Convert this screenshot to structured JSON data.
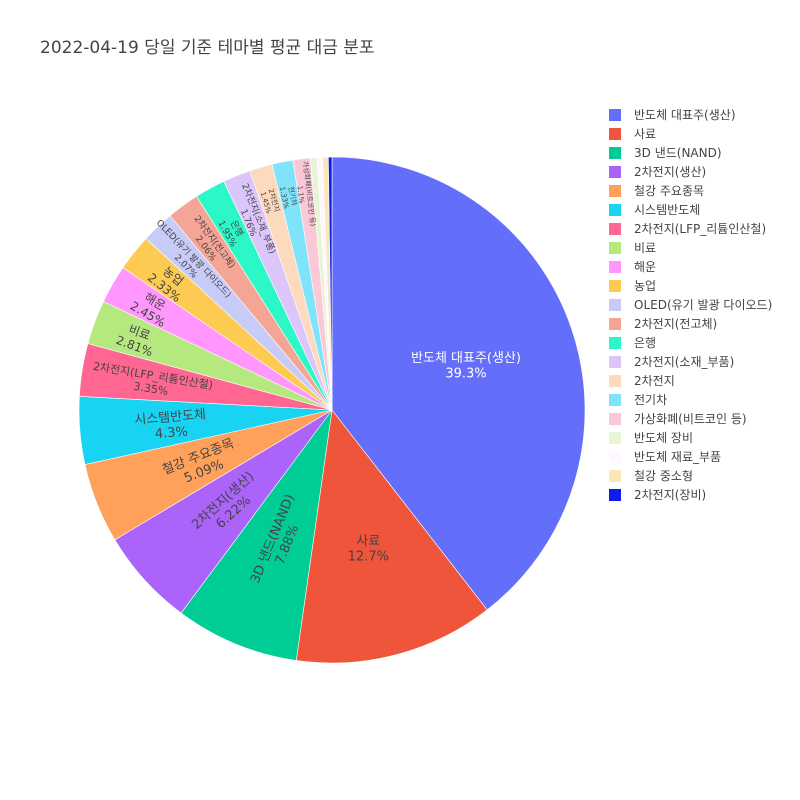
{
  "chart_data": {
    "type": "pie",
    "title": "2022-04-19 당일 기준 테마별 평균 대금 분포",
    "direction": "clockwise",
    "start": "12 o'clock",
    "legend_position": "right",
    "slices": [
      {
        "label": "반도체 대표주(생산)",
        "value": 39.3,
        "text": "39.3%",
        "color": "#636efa"
      },
      {
        "label": "사료",
        "value": 12.7,
        "text": "12.7%",
        "color": "#ef553b"
      },
      {
        "label": "3D 낸드(NAND)",
        "value": 7.88,
        "text": "7.88%",
        "color": "#00cc96"
      },
      {
        "label": "2차전지(생산)",
        "value": 6.22,
        "text": "6.22%",
        "color": "#ab63fa"
      },
      {
        "label": "철강 주요종목",
        "value": 5.09,
        "text": "5.09%",
        "color": "#ffa15a"
      },
      {
        "label": "시스템반도체",
        "value": 4.3,
        "text": "4.3%",
        "color": "#19d3f3"
      },
      {
        "label": "2차전지(LFP_리튬인산철)",
        "value": 3.35,
        "text": "3.35%",
        "color": "#ff6692"
      },
      {
        "label": "비료",
        "value": 2.81,
        "text": "2.81%",
        "color": "#b6e880"
      },
      {
        "label": "해운",
        "value": 2.45,
        "text": "2.45%",
        "color": "#ff97ff"
      },
      {
        "label": "농업",
        "value": 2.33,
        "text": "2.33%",
        "color": "#fecb52"
      },
      {
        "label": "OLED(유기 발광 다이오드)",
        "value": 2.07,
        "text": "2.07%",
        "color": "#c6cbf7"
      },
      {
        "label": "2차전지(전고체)",
        "value": 2.06,
        "text": "2.06%",
        "color": "#f5a595"
      },
      {
        "label": "은행",
        "value": 1.95,
        "text": "1.95%",
        "color": "#2cf7c7"
      },
      {
        "label": "2차전지(소재_부품)",
        "value": 1.76,
        "text": "1.76%",
        "color": "#dcc5fa"
      },
      {
        "label": "2차전지",
        "value": 1.45,
        "text": "1.45%",
        "color": "#fdd9bd"
      },
      {
        "label": "전기차",
        "value": 1.33,
        "text": "1.33%",
        "color": "#7fe4f9"
      },
      {
        "label": "가상화폐(비트코인 등)",
        "value": 1.1,
        "text": "1.1%",
        "color": "#fbc8d7"
      },
      {
        "label": "반도체 장비",
        "value": 0.42,
        "text": "",
        "color": "#e6f5d4"
      },
      {
        "label": "반도체 재료_부품",
        "value": 0.35,
        "text": "",
        "color": "#fff7ff"
      },
      {
        "label": "철강 중소형",
        "value": 0.36,
        "text": "",
        "color": "#fbe7b4"
      },
      {
        "label": "2차전지(장비)",
        "value": 0.23,
        "text": "",
        "color": "#0c1dea"
      }
    ]
  }
}
